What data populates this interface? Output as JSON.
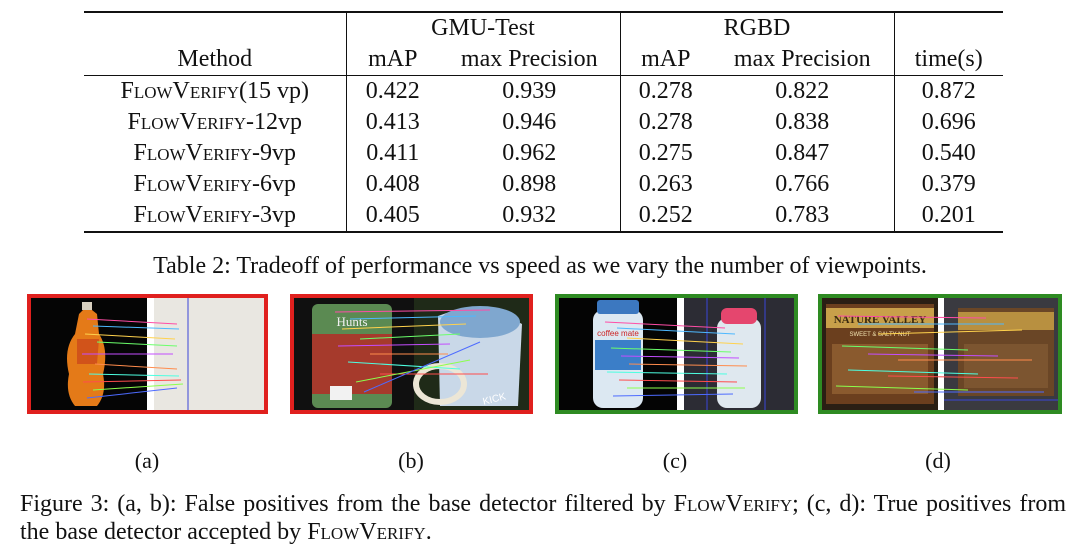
{
  "table": {
    "group_headers": [
      "GMU-Test",
      "RGBD"
    ],
    "columns": [
      "Method",
      "mAP",
      "max Precision",
      "mAP",
      "max Precision",
      "time(s)"
    ],
    "rows": [
      {
        "method_sc": "FlowVerify",
        "method_suffix": "(15 vp)",
        "values": [
          "0.422",
          "0.939",
          "0.278",
          "0.822",
          "0.872"
        ],
        "bold": [
          true,
          false,
          true,
          false,
          false
        ]
      },
      {
        "method_sc": "FlowVerify",
        "method_suffix": "-12vp",
        "values": [
          "0.413",
          "0.946",
          "0.278",
          "0.838",
          "0.696"
        ],
        "bold": [
          false,
          false,
          true,
          false,
          false
        ]
      },
      {
        "method_sc": "FlowVerify",
        "method_suffix": "-9vp",
        "values": [
          "0.411",
          "0.962",
          "0.275",
          "0.847",
          "0.540"
        ],
        "bold": [
          false,
          true,
          false,
          true,
          false
        ]
      },
      {
        "method_sc": "FlowVerify",
        "method_suffix": "-6vp",
        "values": [
          "0.408",
          "0.898",
          "0.263",
          "0.766",
          "0.379"
        ],
        "bold": [
          false,
          false,
          false,
          false,
          false
        ]
      },
      {
        "method_sc": "FlowVerify",
        "method_suffix": "-3vp",
        "values": [
          "0.405",
          "0.932",
          "0.252",
          "0.783",
          "0.201"
        ],
        "bold": [
          false,
          false,
          false,
          false,
          true
        ]
      }
    ],
    "caption": "Table 2: Tradeoff of performance vs speed as we vary the number of viewpoints."
  },
  "figure": {
    "panels": [
      {
        "label": "(a)",
        "border_color": "#e0201e",
        "object": "dish-soap-bottle"
      },
      {
        "label": "(b)",
        "border_color": "#e0201e",
        "object": "hunts-can-vs-mug",
        "text": "Hunts",
        "text2": "KICK"
      },
      {
        "label": "(c)",
        "border_color": "#2e8b22",
        "object": "coffee-mate-bottle",
        "text": "coffee mate"
      },
      {
        "label": "(d)",
        "border_color": "#2e8b22",
        "object": "nature-valley-box",
        "text": "NATURE VALLEY",
        "text2": "SWEET & SALTY NUT"
      }
    ],
    "caption_parts": {
      "p1": "Figure 3: (a, b): False positives from the base detector filtered by ",
      "sc1": "FlowVerify",
      "p2": "; (c, d): True positives from the base detector accepted by ",
      "sc2": "FlowVerify",
      "p3": "."
    }
  }
}
